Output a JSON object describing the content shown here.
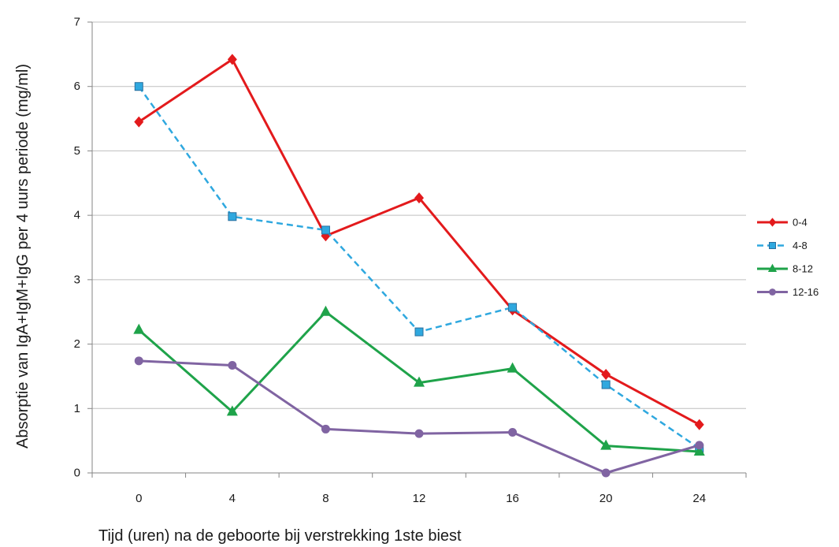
{
  "chart_data": {
    "type": "line",
    "categories": [
      "0",
      "4",
      "8",
      "12",
      "16",
      "20",
      "24"
    ],
    "series": [
      {
        "name": "0-4",
        "values": [
          5.45,
          6.42,
          3.68,
          4.27,
          2.53,
          1.53,
          0.75
        ],
        "color": "#e31a1c",
        "line_style": "solid",
        "marker": "diamond"
      },
      {
        "name": "4-8",
        "values": [
          6.0,
          3.98,
          3.77,
          2.19,
          2.57,
          1.37,
          0.38
        ],
        "color": "#2fa8df",
        "line_style": "dashed",
        "marker": "square"
      },
      {
        "name": "8-12",
        "values": [
          2.22,
          0.95,
          2.5,
          1.4,
          1.62,
          0.42,
          0.33
        ],
        "color": "#1fa34a",
        "line_style": "solid",
        "marker": "triangle"
      },
      {
        "name": "12-16",
        "values": [
          1.74,
          1.67,
          0.68,
          0.61,
          0.63,
          0.0,
          0.43
        ],
        "color": "#8064a2",
        "line_style": "solid",
        "marker": "circle"
      }
    ],
    "xlabel": "Tijd (uren) na de geboorte bij verstrekking 1ste biest",
    "ylabel": "Absorptie van IgA+IgM+IgG per 4 uurs periode (mg/ml)",
    "ylim": [
      0,
      7
    ],
    "yticks": [
      0,
      1,
      2,
      3,
      4,
      5,
      6,
      7
    ],
    "grid": "horizontal",
    "legend": "right"
  }
}
